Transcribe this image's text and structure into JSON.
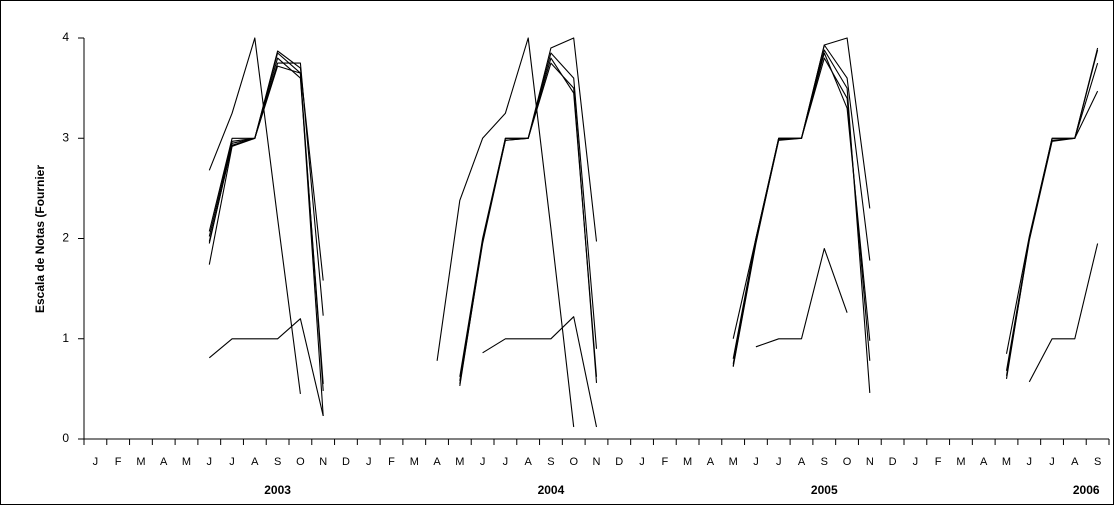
{
  "chart_data": {
    "type": "line",
    "title": "",
    "xlabel": "",
    "ylabel": "Escala de Notas (Fournier",
    "ylim": [
      0,
      4
    ],
    "yticks": [
      "0",
      "1",
      "2",
      "3",
      "4"
    ],
    "grid": false,
    "legend": "none",
    "line_color": "#000000",
    "x_categories": [
      "J",
      "F",
      "M",
      "A",
      "M",
      "J",
      "J",
      "A",
      "S",
      "O",
      "N",
      "D",
      "J",
      "F",
      "M",
      "A",
      "M",
      "J",
      "J",
      "A",
      "S",
      "O",
      "N",
      "D",
      "J",
      "F",
      "M",
      "A",
      "M",
      "J",
      "J",
      "A",
      "S",
      "O",
      "N",
      "D",
      "J",
      "F",
      "M",
      "A",
      "M",
      "J",
      "J",
      "A",
      "S"
    ],
    "years": [
      {
        "label": "2003",
        "center": 8
      },
      {
        "label": "2004",
        "center": 20
      },
      {
        "label": "2005",
        "center": 32
      },
      {
        "label": "2006",
        "center": 43.5
      }
    ],
    "series": [
      {
        "points": [
          [
            5,
            2.68
          ],
          [
            6,
            3.25
          ],
          [
            7,
            4.0
          ],
          [
            8,
            2.2
          ],
          [
            9,
            0.45
          ]
        ]
      },
      {
        "points": [
          [
            5,
            2.07
          ],
          [
            6,
            3.0
          ],
          [
            7,
            3.0
          ],
          [
            8,
            3.87
          ],
          [
            9,
            3.7
          ],
          [
            10,
            1.58
          ]
        ]
      },
      {
        "points": [
          [
            5,
            2.02
          ],
          [
            6,
            2.97
          ],
          [
            7,
            3.0
          ],
          [
            8,
            3.85
          ],
          [
            9,
            3.65
          ],
          [
            10,
            0.48
          ]
        ]
      },
      {
        "points": [
          [
            5,
            1.97
          ],
          [
            6,
            2.93
          ],
          [
            7,
            3.0
          ],
          [
            8,
            3.75
          ],
          [
            9,
            3.75
          ],
          [
            10,
            1.23
          ]
        ]
      },
      {
        "points": [
          [
            5,
            1.95
          ],
          [
            6,
            2.95
          ],
          [
            7,
            3.0
          ],
          [
            8,
            3.8
          ],
          [
            9,
            3.6
          ],
          [
            10,
            0.55
          ]
        ]
      },
      {
        "points": [
          [
            5,
            1.74
          ],
          [
            6,
            2.92
          ],
          [
            7,
            3.0
          ],
          [
            8,
            3.72
          ],
          [
            9,
            3.65
          ],
          [
            10,
            0.23
          ]
        ]
      },
      {
        "points": [
          [
            5,
            0.81
          ],
          [
            6,
            1.0
          ],
          [
            7,
            1.0
          ],
          [
            8,
            1.0
          ],
          [
            9,
            1.2
          ],
          [
            10,
            0.23
          ]
        ]
      },
      {
        "points": [
          [
            15,
            0.78
          ],
          [
            16,
            2.38
          ],
          [
            17,
            3.0
          ],
          [
            18,
            3.25
          ],
          [
            19,
            4.0
          ],
          [
            20,
            2.1
          ],
          [
            21,
            0.12
          ]
        ]
      },
      {
        "points": [
          [
            16,
            0.62
          ],
          [
            17,
            2.0
          ],
          [
            18,
            3.0
          ],
          [
            19,
            3.0
          ],
          [
            20,
            3.9
          ],
          [
            21,
            4.0
          ],
          [
            22,
            1.97
          ]
        ]
      },
      {
        "points": [
          [
            16,
            0.58
          ],
          [
            17,
            1.98
          ],
          [
            18,
            2.98
          ],
          [
            19,
            3.0
          ],
          [
            20,
            3.85
          ],
          [
            21,
            3.6
          ],
          [
            22,
            0.9
          ]
        ]
      },
      {
        "points": [
          [
            16,
            0.55
          ],
          [
            17,
            1.95
          ],
          [
            18,
            2.98
          ],
          [
            19,
            3.0
          ],
          [
            20,
            3.75
          ],
          [
            21,
            3.5
          ],
          [
            22,
            0.56
          ]
        ]
      },
      {
        "points": [
          [
            16,
            0.53
          ],
          [
            17,
            1.97
          ],
          [
            18,
            3.0
          ],
          [
            19,
            3.0
          ],
          [
            20,
            3.8
          ],
          [
            21,
            3.45
          ],
          [
            22,
            0.62
          ]
        ]
      },
      {
        "points": [
          [
            17,
            0.86
          ],
          [
            18,
            1.0
          ],
          [
            19,
            1.0
          ],
          [
            20,
            1.0
          ],
          [
            21,
            1.22
          ],
          [
            22,
            0.12
          ]
        ]
      },
      {
        "points": [
          [
            28,
            1.0
          ],
          [
            29,
            2.0
          ],
          [
            30,
            3.0
          ],
          [
            31,
            3.0
          ],
          [
            32,
            3.93
          ],
          [
            33,
            4.0
          ],
          [
            34,
            2.3
          ]
        ]
      },
      {
        "points": [
          [
            28,
            0.8
          ],
          [
            29,
            2.0
          ],
          [
            30,
            3.0
          ],
          [
            31,
            3.0
          ],
          [
            32,
            3.93
          ],
          [
            33,
            3.6
          ],
          [
            34,
            1.78
          ]
        ]
      },
      {
        "points": [
          [
            28,
            0.75
          ],
          [
            29,
            1.98
          ],
          [
            30,
            2.99
          ],
          [
            31,
            3.0
          ],
          [
            32,
            3.88
          ],
          [
            33,
            3.5
          ],
          [
            34,
            0.46
          ]
        ]
      },
      {
        "points": [
          [
            28,
            0.73
          ],
          [
            29,
            1.97
          ],
          [
            30,
            2.98
          ],
          [
            31,
            3.0
          ],
          [
            32,
            3.8
          ],
          [
            33,
            3.4
          ],
          [
            34,
            0.78
          ]
        ]
      },
      {
        "points": [
          [
            28,
            0.72
          ],
          [
            29,
            1.95
          ],
          [
            30,
            3.0
          ],
          [
            31,
            3.0
          ],
          [
            32,
            3.85
          ],
          [
            33,
            3.3
          ],
          [
            34,
            0.98
          ]
        ]
      },
      {
        "points": [
          [
            29,
            0.92
          ],
          [
            30,
            1.0
          ],
          [
            31,
            1.0
          ],
          [
            32,
            1.9
          ],
          [
            33,
            1.26
          ]
        ]
      },
      {
        "points": [
          [
            40,
            0.85
          ],
          [
            41,
            2.02
          ],
          [
            42,
            3.0
          ],
          [
            43,
            3.0
          ],
          [
            44,
            3.9
          ]
        ]
      },
      {
        "points": [
          [
            40,
            0.68
          ],
          [
            41,
            2.0
          ],
          [
            42,
            2.98
          ],
          [
            43,
            3.0
          ],
          [
            44,
            3.88
          ]
        ]
      },
      {
        "points": [
          [
            40,
            0.63
          ],
          [
            41,
            1.98
          ],
          [
            42,
            2.97
          ],
          [
            43,
            3.0
          ],
          [
            44,
            3.75
          ]
        ]
      },
      {
        "points": [
          [
            40,
            0.6
          ],
          [
            41,
            2.0
          ],
          [
            42,
            3.0
          ],
          [
            43,
            3.0
          ],
          [
            44,
            3.47
          ]
        ]
      },
      {
        "points": [
          [
            41,
            0.57
          ],
          [
            42,
            1.0
          ],
          [
            43,
            1.0
          ],
          [
            44,
            1.95
          ]
        ]
      }
    ]
  }
}
